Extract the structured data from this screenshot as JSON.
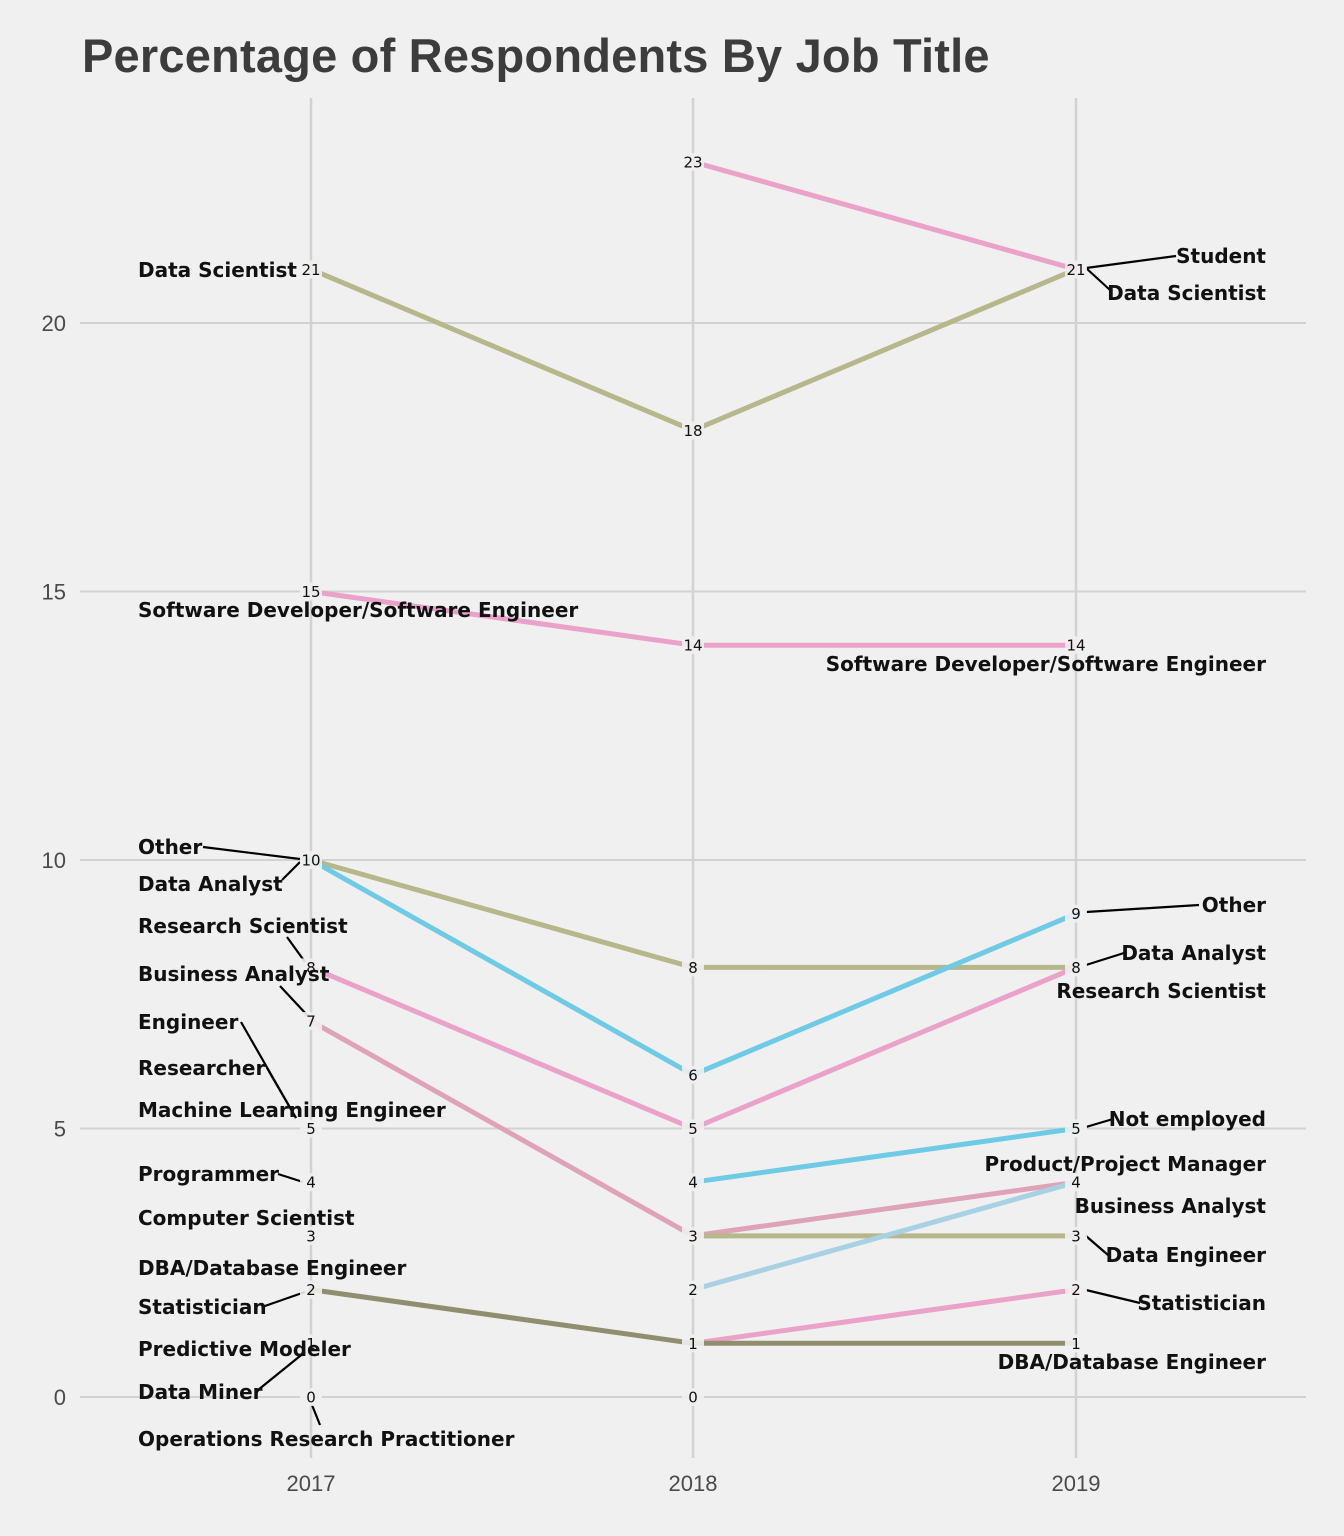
{
  "chart_data": {
    "type": "line",
    "title": "Percentage of Respondents By Job Title",
    "xlabel": "",
    "ylabel": "",
    "x": [
      "2017",
      "2018",
      "2019"
    ],
    "ylim": [
      0,
      23
    ],
    "yticks": [
      0,
      5,
      10,
      15,
      20
    ],
    "grid": true,
    "colors": {
      "olive": "#b6b78a",
      "pink": "#eaa2c8",
      "blue": "#6fcae5",
      "rose": "#dea3b8",
      "lightblue": "#a8d2e4",
      "darkolive": "#8f8f6f"
    },
    "series": [
      {
        "values": [
          21,
          18,
          21
        ],
        "color": "olive"
      },
      {
        "values": [
          null,
          23,
          21
        ],
        "color": "pink"
      },
      {
        "values": [
          15,
          14,
          14
        ],
        "color": "pink"
      },
      {
        "values": [
          10,
          8,
          8
        ],
        "color": "olive"
      },
      {
        "values": [
          10,
          6,
          9
        ],
        "color": "blue"
      },
      {
        "values": [
          8,
          5,
          8
        ],
        "color": "pink"
      },
      {
        "values": [
          7,
          3,
          4
        ],
        "color": "rose"
      },
      {
        "values": [
          null,
          4,
          5
        ],
        "color": "blue"
      },
      {
        "values": [
          null,
          3,
          3
        ],
        "color": "olive"
      },
      {
        "values": [
          null,
          2,
          4
        ],
        "color": "lightblue"
      },
      {
        "values": [
          null,
          1,
          2
        ],
        "color": "pink"
      },
      {
        "values": [
          2,
          1,
          1
        ],
        "color": "darkolive"
      }
    ],
    "point_values": {
      "2017": [
        21,
        15,
        10,
        8,
        7,
        5,
        4,
        3,
        2,
        1,
        0
      ],
      "2018": [
        23,
        18,
        14,
        8,
        6,
        5,
        4,
        3,
        2,
        1,
        0
      ],
      "2019": [
        21,
        14,
        9,
        8,
        5,
        4,
        3,
        2,
        1
      ]
    },
    "labels_left": [
      {
        "text": "Data Scientist",
        "value": 21
      },
      {
        "text": "Software Developer/Software Engineer",
        "value": 15
      },
      {
        "text": "Other",
        "value": 10
      },
      {
        "text": "Data Analyst",
        "value": 10
      },
      {
        "text": "Research Scientist",
        "value": 8
      },
      {
        "text": "Business Analyst",
        "value": 7
      },
      {
        "text": "Engineer",
        "value": 5
      },
      {
        "text": "Researcher",
        "value": 5
      },
      {
        "text": "Machine Learning Engineer",
        "value": 5
      },
      {
        "text": "Programmer",
        "value": 4
      },
      {
        "text": "Computer Scientist",
        "value": 3
      },
      {
        "text": "DBA/Database Engineer",
        "value": 2
      },
      {
        "text": "Statistician",
        "value": 2
      },
      {
        "text": "Predictive Modeler",
        "value": 1
      },
      {
        "text": "Data Miner",
        "value": 1
      },
      {
        "text": "Operations Research Practitioner",
        "value": 0
      }
    ],
    "labels_right": [
      {
        "text": "Student",
        "value": 21
      },
      {
        "text": "Data Scientist",
        "value": 21
      },
      {
        "text": "Software Developer/Software Engineer",
        "value": 14
      },
      {
        "text": "Other",
        "value": 9
      },
      {
        "text": "Data Analyst",
        "value": 8
      },
      {
        "text": "Research Scientist",
        "value": 8
      },
      {
        "text": "Not employed",
        "value": 5
      },
      {
        "text": "Product/Project Manager",
        "value": 4
      },
      {
        "text": "Business Analyst",
        "value": 4
      },
      {
        "text": "Data Engineer",
        "value": 3
      },
      {
        "text": "Statistician",
        "value": 2
      },
      {
        "text": "DBA/Database Engineer",
        "value": 1
      }
    ]
  }
}
